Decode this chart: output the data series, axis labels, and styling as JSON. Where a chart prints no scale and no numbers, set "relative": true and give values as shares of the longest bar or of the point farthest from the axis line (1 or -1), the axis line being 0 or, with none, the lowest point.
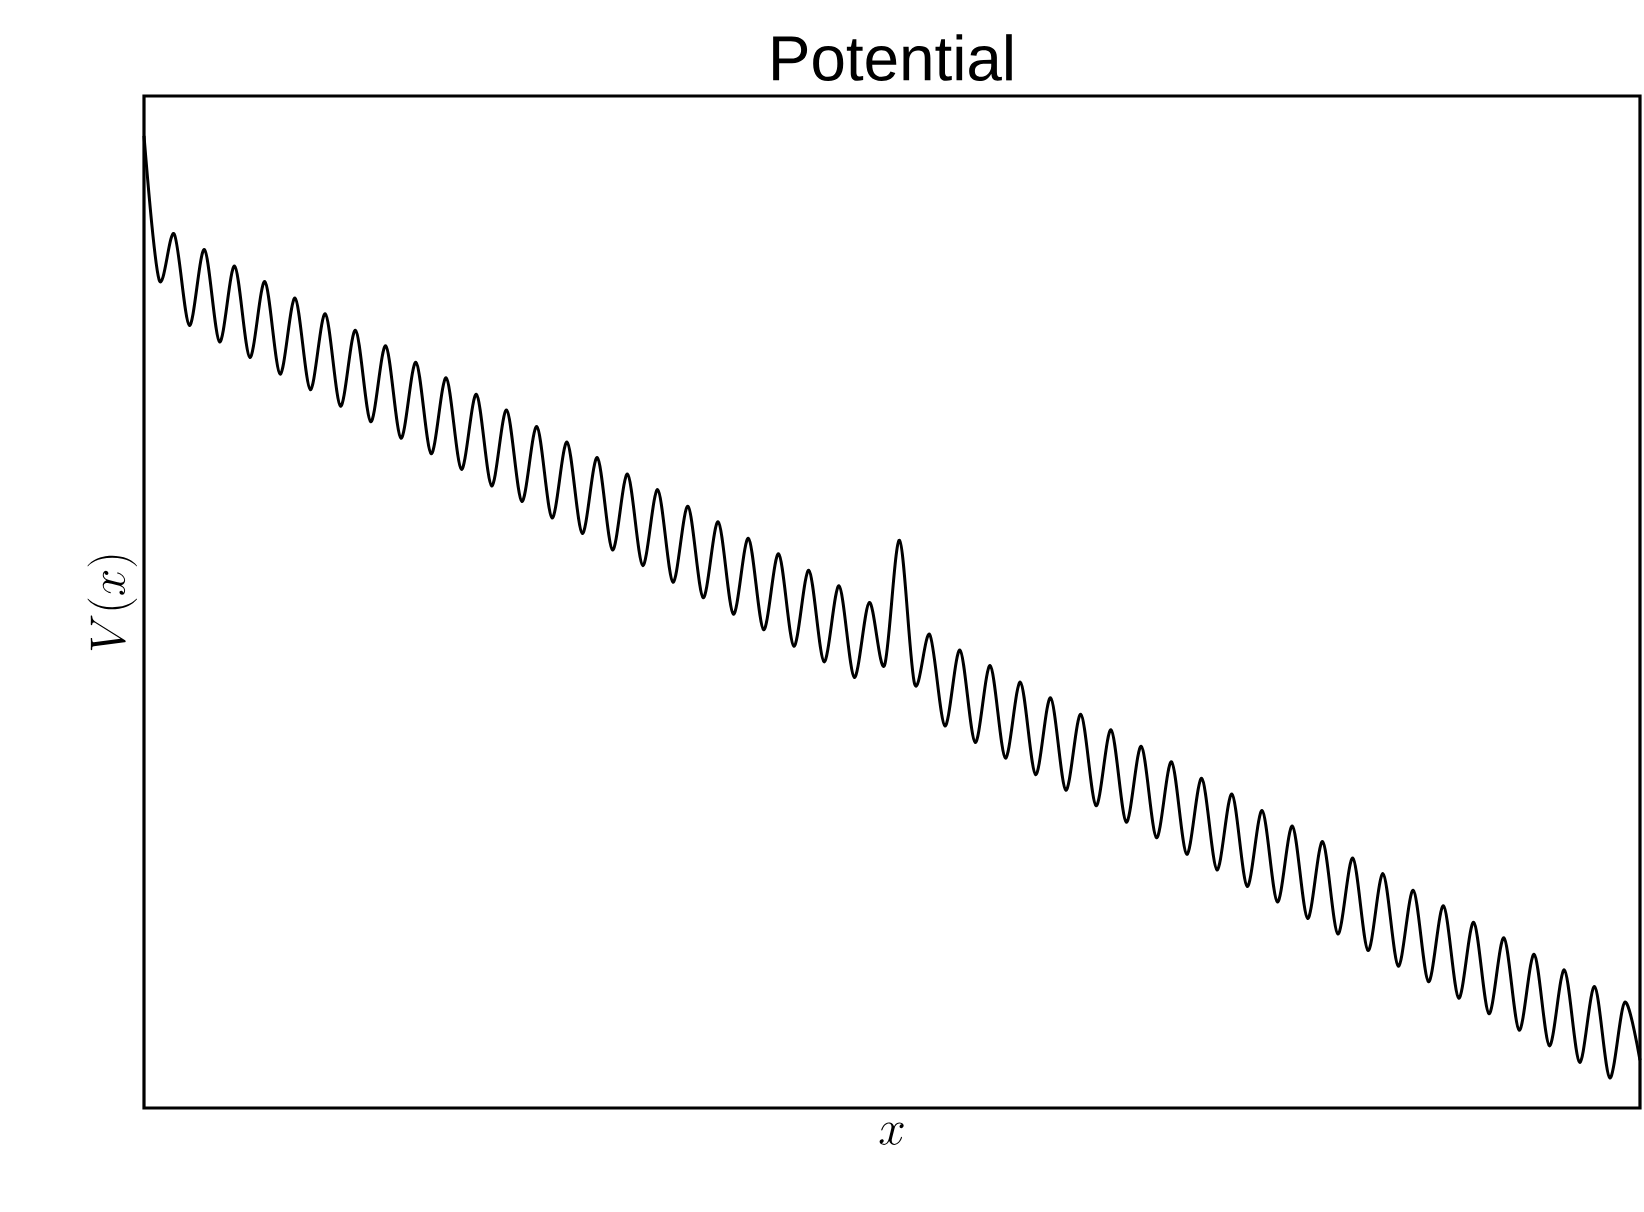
{
  "chart_data": {
    "type": "line",
    "title": "Potential",
    "xlabel": "x",
    "ylabel": "V(x)",
    "relative": true,
    "color": "#000000",
    "categories": [
      null,
      null,
      null,
      null,
      null,
      null,
      null,
      null,
      null,
      null,
      null,
      null,
      null,
      null,
      null,
      null,
      null,
      null,
      null,
      null,
      null,
      null,
      null,
      null,
      null,
      null,
      null,
      null,
      null,
      null,
      null,
      null,
      null,
      null,
      null,
      null,
      null,
      null,
      null,
      null,
      null,
      null,
      null,
      null,
      null,
      null,
      null,
      null,
      null,
      null,
      null,
      null,
      null,
      null,
      null,
      null,
      null,
      null,
      null,
      null,
      null,
      null,
      null,
      null,
      null,
      null,
      null,
      null,
      null,
      null,
      null,
      null,
      null,
      null,
      null,
      null,
      null,
      null,
      null,
      null,
      null,
      null,
      null,
      null,
      null,
      null,
      null,
      null,
      null,
      null,
      null,
      null,
      null,
      null,
      null,
      null,
      null,
      null,
      null,
      null
    ],
    "values": [
      1.0,
      0.852,
      0.899,
      0.805,
      0.883,
      0.788,
      0.866,
      0.772,
      0.85,
      0.755,
      0.833,
      0.739,
      0.817,
      0.722,
      0.8,
      0.706,
      0.784,
      0.689,
      0.767,
      0.673,
      0.751,
      0.657,
      0.734,
      0.64,
      0.718,
      0.624,
      0.701,
      0.607,
      0.685,
      0.591,
      0.669,
      0.574,
      0.652,
      0.558,
      0.636,
      0.541,
      0.619,
      0.525,
      0.603,
      0.508,
      0.586,
      0.492,
      0.57,
      0.475,
      0.553,
      0.459,
      0.537,
      0.443,
      0.52,
      0.455,
      0.584,
      0.436,
      0.487,
      0.393,
      0.471,
      0.376,
      0.455,
      0.36,
      0.438,
      0.343,
      0.422,
      0.327,
      0.405,
      0.311,
      0.389,
      0.294,
      0.372,
      0.278,
      0.356,
      0.261,
      0.339,
      0.245,
      0.323,
      0.228,
      0.306,
      0.212,
      0.29,
      0.195,
      0.274,
      0.179,
      0.257,
      0.162,
      0.241,
      0.146,
      0.224,
      0.13,
      0.208,
      0.113,
      0.191,
      0.097,
      0.175,
      0.08,
      0.158,
      0.064,
      0.142,
      0.047,
      0.125,
      0.031,
      0.109,
      0.049
    ],
    "marker": "none",
    "line_style": "solid"
  }
}
